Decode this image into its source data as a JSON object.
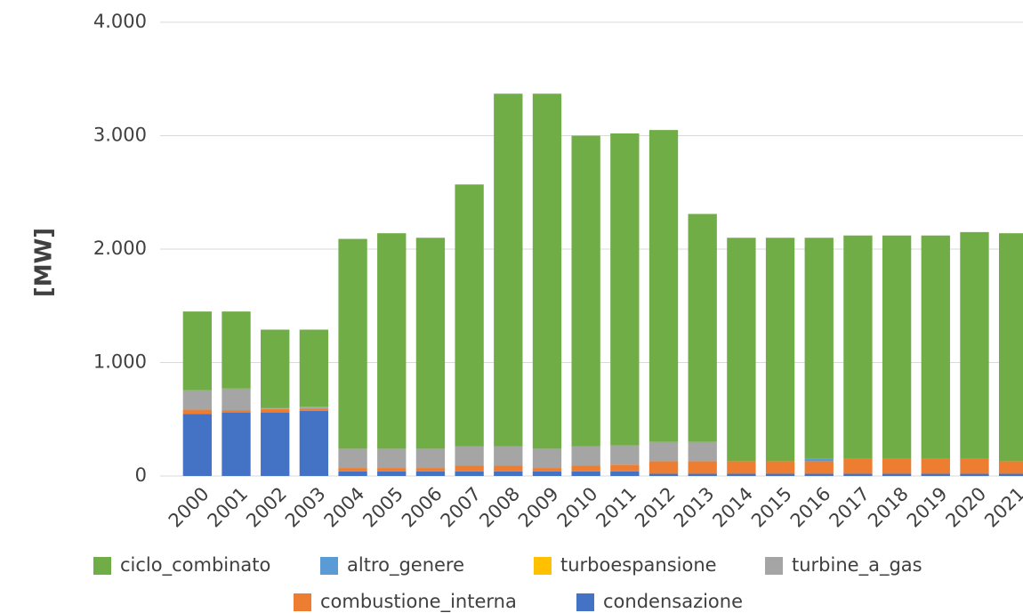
{
  "chart_data": {
    "type": "bar",
    "stacked": true,
    "y_label": "[MW]",
    "categories": [
      "2000",
      "2001",
      "2002",
      "2003",
      "2004",
      "2005",
      "2006",
      "2007",
      "2008",
      "2009",
      "2010",
      "2011",
      "2012",
      "2013",
      "2014",
      "2015",
      "2016",
      "2017",
      "2018",
      "2019",
      "2020",
      "2021"
    ],
    "series": [
      {
        "name": "ciclo_combinato",
        "color": "#70ad47",
        "values": [
          695,
          680,
          690,
          680,
          1850,
          1900,
          1860,
          2310,
          3110,
          3130,
          2740,
          2750,
          2750,
          2010,
          1970,
          1970,
          1950,
          1970,
          1970,
          1970,
          2000,
          2010
        ]
      },
      {
        "name": "altro_genere",
        "color": "#5b9bd5",
        "values": [
          0,
          0,
          0,
          0,
          0,
          0,
          0,
          0,
          0,
          0,
          0,
          0,
          0,
          0,
          0,
          0,
          20,
          0,
          0,
          0,
          0,
          0
        ]
      },
      {
        "name": "turboespansione",
        "color": "#ffc000",
        "values": [
          0,
          0,
          0,
          0,
          0,
          0,
          0,
          0,
          0,
          0,
          0,
          0,
          0,
          0,
          0,
          0,
          0,
          0,
          0,
          0,
          0,
          0
        ]
      },
      {
        "name": "turbine_a_gas",
        "color": "#a5a5a5",
        "values": [
          170,
          190,
          10,
          15,
          170,
          170,
          170,
          170,
          170,
          170,
          170,
          170,
          170,
          170,
          0,
          0,
          0,
          0,
          0,
          0,
          0,
          0
        ]
      },
      {
        "name": "combustione_interna",
        "color": "#ed7d31",
        "values": [
          40,
          20,
          30,
          20,
          30,
          30,
          30,
          50,
          50,
          30,
          50,
          60,
          110,
          110,
          110,
          110,
          110,
          130,
          130,
          130,
          130,
          110
        ]
      },
      {
        "name": "condensazione",
        "color": "#4472c4",
        "values": [
          545,
          560,
          560,
          575,
          40,
          40,
          40,
          40,
          40,
          40,
          40,
          40,
          20,
          20,
          20,
          20,
          20,
          20,
          20,
          20,
          20,
          20
        ]
      }
    ],
    "ylim": [
      0,
      4000
    ],
    "yticks": [
      {
        "value": 0,
        "label": "0"
      },
      {
        "value": 1000,
        "label": "1.000"
      },
      {
        "value": 2000,
        "label": "2.000"
      },
      {
        "value": 3000,
        "label": "3.000"
      },
      {
        "value": 4000,
        "label": "4.000"
      }
    ],
    "grid": true,
    "legend": "bottom"
  }
}
